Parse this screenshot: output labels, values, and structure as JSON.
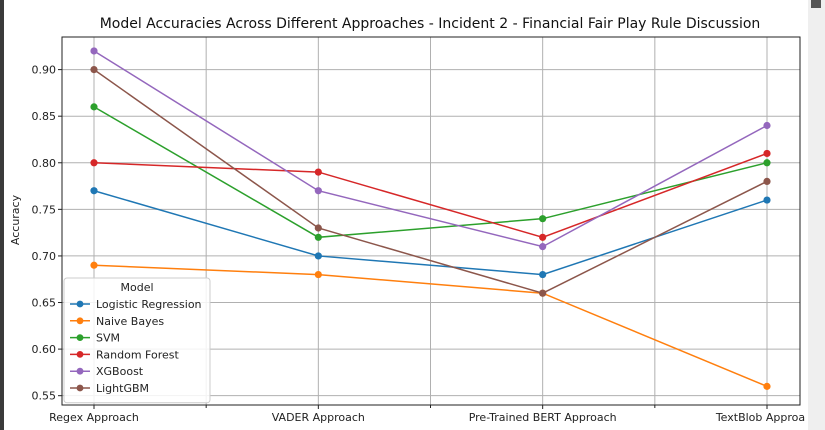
{
  "chart_data": {
    "type": "line",
    "title": "Model Accuracies Across Different Approaches - Incident 2 - Financial Fair Play Rule Discussion",
    "xlabel": "",
    "ylabel": "Accuracy",
    "categories": [
      "Regex Approach",
      "VADER Approach",
      "Pre-Trained BERT Approach",
      "TextBlob Approach"
    ],
    "ylim": [
      0.54,
      0.935
    ],
    "yticks": [
      0.55,
      0.6,
      0.65,
      0.7,
      0.75,
      0.8,
      0.85,
      0.9
    ],
    "ytick_labels": [
      "0.55",
      "0.60",
      "0.65",
      "0.70",
      "0.75",
      "0.80",
      "0.85",
      "0.90"
    ],
    "grid": true,
    "legend": {
      "title": "Model",
      "placement": "lower-left"
    },
    "series": [
      {
        "name": "Logistic Regression",
        "color": "#1f77b4",
        "values": [
          0.77,
          0.7,
          0.68,
          0.76
        ]
      },
      {
        "name": "Naive Bayes",
        "color": "#ff7f0e",
        "values": [
          0.69,
          0.68,
          0.66,
          0.56
        ]
      },
      {
        "name": "SVM",
        "color": "#2ca02c",
        "values": [
          0.86,
          0.72,
          0.74,
          0.8
        ]
      },
      {
        "name": "Random Forest",
        "color": "#d62728",
        "values": [
          0.8,
          0.79,
          0.72,
          0.81
        ]
      },
      {
        "name": "XGBoost",
        "color": "#9467bd",
        "values": [
          0.92,
          0.77,
          0.71,
          0.84
        ]
      },
      {
        "name": "LightGBM",
        "color": "#8c564b",
        "values": [
          0.9,
          0.73,
          0.66,
          0.78
        ]
      }
    ]
  }
}
